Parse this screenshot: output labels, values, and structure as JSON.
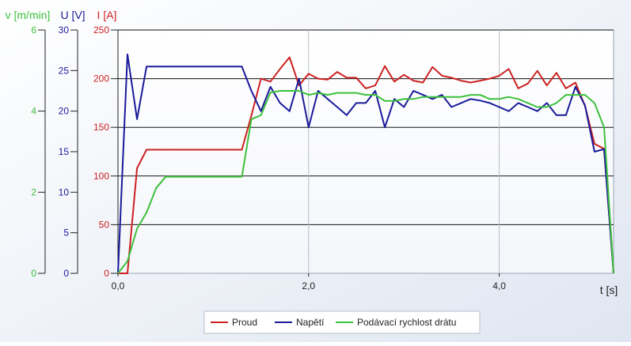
{
  "chart_data": {
    "type": "line",
    "xlabel": "t [s]",
    "xlim": [
      0,
      5.2
    ],
    "x_ticks": [
      {
        "value": 0,
        "label": "0,0"
      },
      {
        "value": 2,
        "label": "2,0"
      },
      {
        "value": 4,
        "label": "4,0"
      }
    ],
    "grid": true,
    "legend_position": "bottom",
    "axes": [
      {
        "id": "v",
        "label": "v [m/min]",
        "color": "#3cc03c",
        "range": [
          0,
          6
        ],
        "ticks": [
          "0",
          "2",
          "4",
          "6"
        ]
      },
      {
        "id": "u",
        "label": "U [V]",
        "color": "#1a1a9a",
        "range": [
          0,
          30
        ],
        "ticks": [
          "0",
          "5",
          "10",
          "15",
          "20",
          "25",
          "30"
        ]
      },
      {
        "id": "i",
        "label": "I [A]",
        "color": "#cc2222",
        "range": [
          0,
          250
        ],
        "ticks": [
          "0",
          "50",
          "100",
          "150",
          "200",
          "250"
        ]
      }
    ],
    "series": [
      {
        "name": "Proud",
        "axis": "i",
        "color": "#cc2222",
        "x": [
          0,
          0.1,
          0.2,
          0.3,
          1.3,
          1.4,
          1.5,
          1.6,
          1.7,
          1.8,
          1.9,
          2.0,
          2.1,
          2.2,
          2.3,
          2.4,
          2.5,
          2.6,
          2.7,
          2.8,
          2.9,
          3.0,
          3.1,
          3.2,
          3.3,
          3.4,
          3.5,
          3.6,
          3.7,
          3.8,
          3.9,
          4.0,
          4.1,
          4.2,
          4.3,
          4.4,
          4.5,
          4.6,
          4.7,
          4.8,
          4.9,
          5.0,
          5.1,
          5.2
        ],
        "values": [
          0,
          0,
          108,
          127,
          127,
          162,
          200,
          197,
          210,
          222,
          193,
          205,
          200,
          199,
          207,
          201,
          201,
          190,
          193,
          213,
          197,
          204,
          198,
          196,
          212,
          203,
          201,
          198,
          196,
          198,
          200,
          203,
          210,
          190,
          195,
          208,
          193,
          206,
          190,
          196,
          172,
          133,
          128,
          0
        ]
      },
      {
        "name": "Napětí",
        "axis": "u",
        "color": "#1a1a9a",
        "x": [
          0,
          0.1,
          0.2,
          0.3,
          1.3,
          1.4,
          1.5,
          1.6,
          1.7,
          1.8,
          1.9,
          2.0,
          2.1,
          2.2,
          2.3,
          2.4,
          2.5,
          2.6,
          2.7,
          2.8,
          2.9,
          3.0,
          3.1,
          3.2,
          3.3,
          3.4,
          3.5,
          3.6,
          3.7,
          3.8,
          3.9,
          4.0,
          4.1,
          4.2,
          4.3,
          4.4,
          4.5,
          4.6,
          4.7,
          4.8,
          4.9,
          5.0,
          5.1,
          5.2
        ],
        "values": [
          0,
          27,
          19,
          25.5,
          25.5,
          22.5,
          20,
          23,
          21,
          20,
          24,
          18,
          22.5,
          21.5,
          20.5,
          19.5,
          21,
          21,
          22.5,
          18,
          21.5,
          20.5,
          22.5,
          22,
          21.5,
          22,
          20.5,
          21,
          21.5,
          21.3,
          21,
          20.5,
          20,
          21,
          20.5,
          20,
          21,
          19.5,
          19.5,
          23,
          20.7,
          15,
          15.3,
          0
        ]
      },
      {
        "name": "Podávací rychlost drátu",
        "axis": "v",
        "color": "#3cc03c",
        "x": [
          0,
          0.1,
          0.2,
          0.3,
          0.4,
          0.5,
          1.3,
          1.4,
          1.5,
          1.6,
          1.7,
          1.8,
          1.9,
          2.0,
          2.1,
          2.2,
          2.3,
          2.4,
          2.5,
          2.6,
          2.7,
          2.8,
          2.9,
          3.0,
          3.1,
          3.2,
          3.3,
          3.4,
          3.5,
          3.6,
          3.7,
          3.8,
          3.9,
          4.0,
          4.1,
          4.2,
          4.3,
          4.4,
          4.5,
          4.6,
          4.7,
          4.8,
          4.9,
          5.0,
          5.1,
          5.2
        ],
        "values": [
          0,
          0.3,
          1.1,
          1.5,
          2.1,
          2.38,
          2.38,
          3.8,
          3.9,
          4.46,
          4.5,
          4.5,
          4.5,
          4.4,
          4.45,
          4.4,
          4.45,
          4.45,
          4.45,
          4.4,
          4.4,
          4.25,
          4.25,
          4.3,
          4.3,
          4.35,
          4.35,
          4.35,
          4.35,
          4.35,
          4.4,
          4.4,
          4.3,
          4.3,
          4.35,
          4.3,
          4.2,
          4.1,
          4.1,
          4.2,
          4.4,
          4.4,
          4.4,
          4.2,
          3.6,
          0
        ]
      }
    ]
  }
}
